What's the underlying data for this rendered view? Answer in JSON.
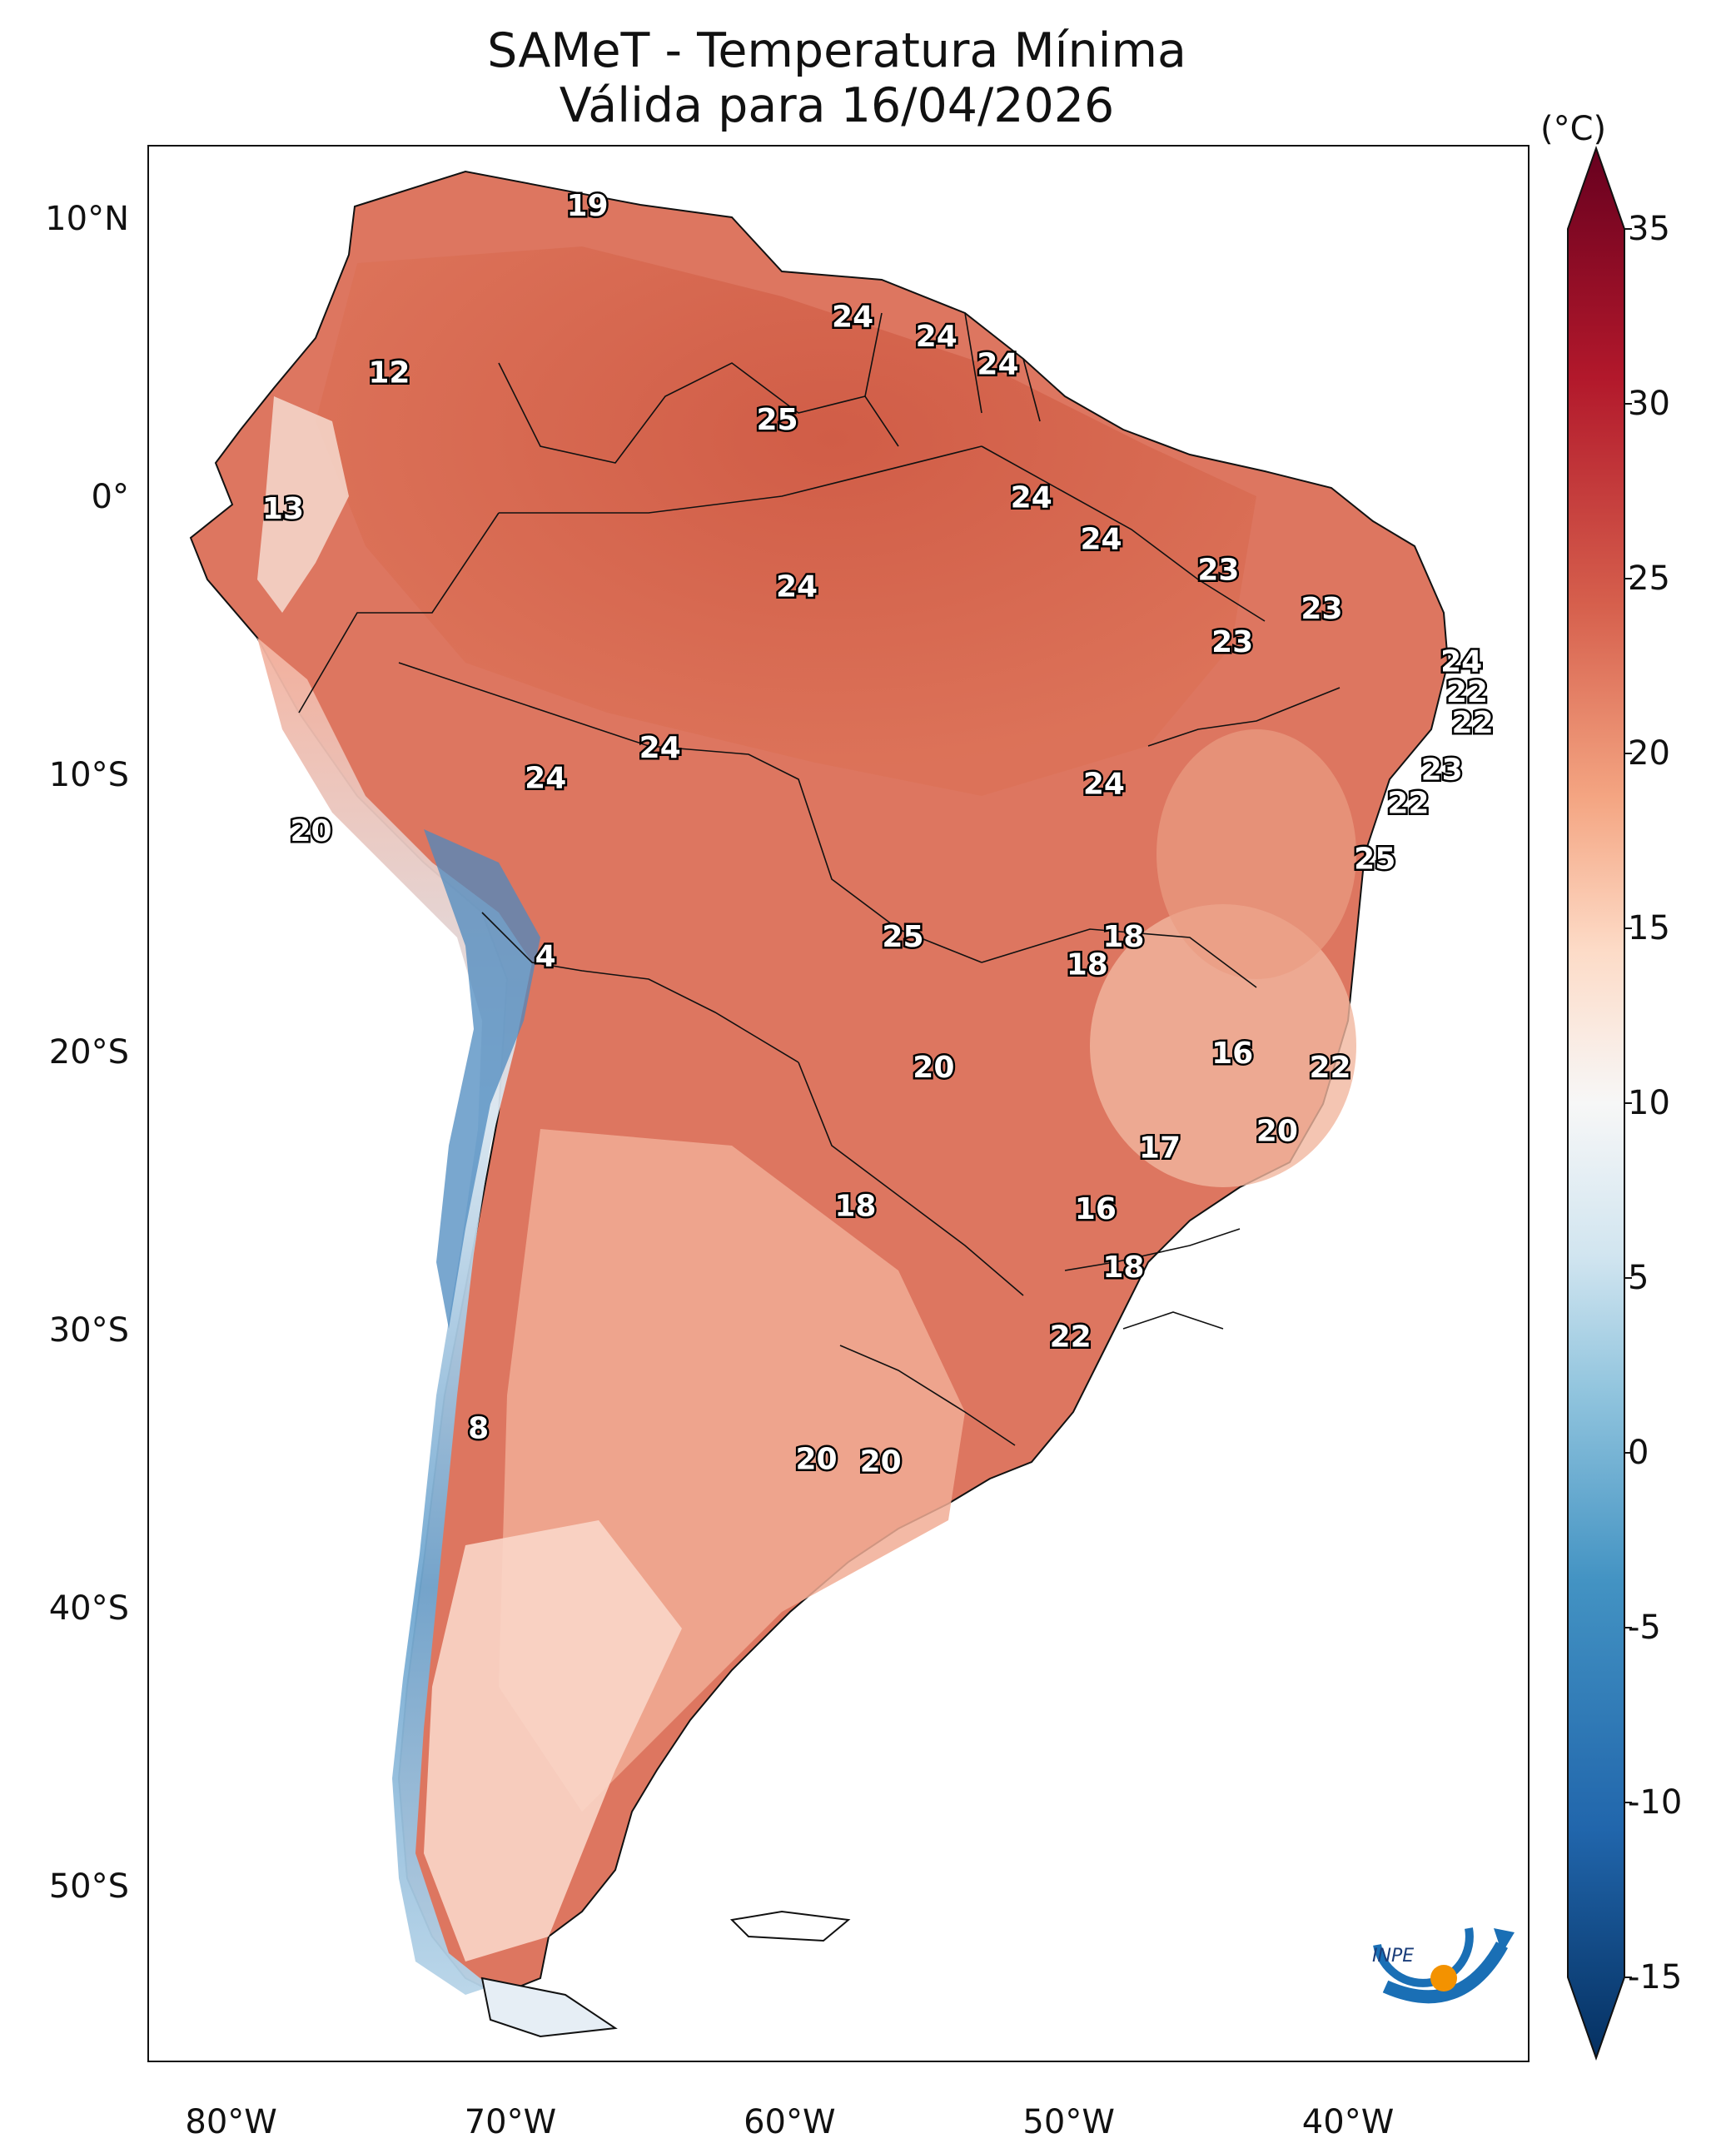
{
  "title": "SAMeT - Temperatura Mínima",
  "subtitle": "Válida para 16/04/2026",
  "colorbar": {
    "unit": "(°C)",
    "ticks": [
      "35",
      "30",
      "25",
      "20",
      "15",
      "10",
      "5",
      "0",
      "-5",
      "-10",
      "-15"
    ],
    "range": [
      -17.5,
      37.5
    ],
    "colormap": "RdBu_r",
    "colors": [
      "#053061",
      "#2166ac",
      "#4393c3",
      "#92c5de",
      "#d1e5f0",
      "#f7f7f7",
      "#fddbc7",
      "#f4a582",
      "#d6604d",
      "#b2182b",
      "#67001f"
    ]
  },
  "axes": {
    "lat_ticks": [
      "10°N",
      "0°",
      "10°S",
      "20°S",
      "30°S",
      "40°S",
      "50°S"
    ],
    "lon_ticks": [
      "80°W",
      "70°W",
      "60°W",
      "50°W",
      "40°W"
    ]
  },
  "map_data": {
    "type": "filled-contour map",
    "region": "South America",
    "lon_range": [
      -83,
      -33.5
    ],
    "lat_range": [
      -56.3,
      12.7
    ],
    "point_labels": [
      {
        "value": "19",
        "lon": -67.3,
        "lat": 10.6
      },
      {
        "value": "12",
        "lon": -74.4,
        "lat": 4.6
      },
      {
        "value": "24",
        "lon": -57.8,
        "lat": 6.6
      },
      {
        "value": "24",
        "lon": -54.8,
        "lat": 5.9
      },
      {
        "value": "24",
        "lon": -52.6,
        "lat": 4.9
      },
      {
        "value": "25",
        "lon": -60.5,
        "lat": 2.9
      },
      {
        "value": "13",
        "lon": -78.2,
        "lat": -0.3
      },
      {
        "value": "24",
        "lon": -51.4,
        "lat": 0.1
      },
      {
        "value": "24",
        "lon": -48.9,
        "lat": -1.4
      },
      {
        "value": "23",
        "lon": -44.7,
        "lat": -2.5
      },
      {
        "value": "24",
        "lon": -59.8,
        "lat": -3.1
      },
      {
        "value": "23",
        "lon": -41.0,
        "lat": -3.9
      },
      {
        "value": "23",
        "lon": -44.2,
        "lat": -5.1
      },
      {
        "value": "24",
        "lon": -36.0,
        "lat": -5.8
      },
      {
        "value": "22",
        "lon": -35.8,
        "lat": -6.9
      },
      {
        "value": "22",
        "lon": -35.6,
        "lat": -8.0
      },
      {
        "value": "24",
        "lon": -64.7,
        "lat": -8.9
      },
      {
        "value": "23",
        "lon": -36.7,
        "lat": -9.7
      },
      {
        "value": "24",
        "lon": -68.8,
        "lat": -10.0
      },
      {
        "value": "24",
        "lon": -48.8,
        "lat": -10.2
      },
      {
        "value": "22",
        "lon": -37.9,
        "lat": -10.9
      },
      {
        "value": "20",
        "lon": -77.2,
        "lat": -11.9
      },
      {
        "value": "25",
        "lon": -39.1,
        "lat": -12.9
      },
      {
        "value": "25",
        "lon": -56.0,
        "lat": -15.7
      },
      {
        "value": "18",
        "lon": -48.1,
        "lat": -15.7
      },
      {
        "value": "4",
        "lon": -68.8,
        "lat": -16.4
      },
      {
        "value": "18",
        "lon": -49.4,
        "lat": -16.7
      },
      {
        "value": "16",
        "lon": -44.2,
        "lat": -19.9
      },
      {
        "value": "20",
        "lon": -54.9,
        "lat": -20.4
      },
      {
        "value": "22",
        "lon": -40.7,
        "lat": -20.4
      },
      {
        "value": "20",
        "lon": -42.6,
        "lat": -22.7
      },
      {
        "value": "17",
        "lon": -46.8,
        "lat": -23.3
      },
      {
        "value": "18",
        "lon": -57.7,
        "lat": -25.4
      },
      {
        "value": "16",
        "lon": -49.1,
        "lat": -25.5
      },
      {
        "value": "18",
        "lon": -48.1,
        "lat": -27.6
      },
      {
        "value": "22",
        "lon": -50.0,
        "lat": -30.1
      },
      {
        "value": "8",
        "lon": -71.2,
        "lat": -33.4
      },
      {
        "value": "20",
        "lon": -59.1,
        "lat": -34.5
      },
      {
        "value": "20",
        "lon": -56.8,
        "lat": -34.6
      }
    ]
  },
  "logo": {
    "text": "INPE"
  }
}
